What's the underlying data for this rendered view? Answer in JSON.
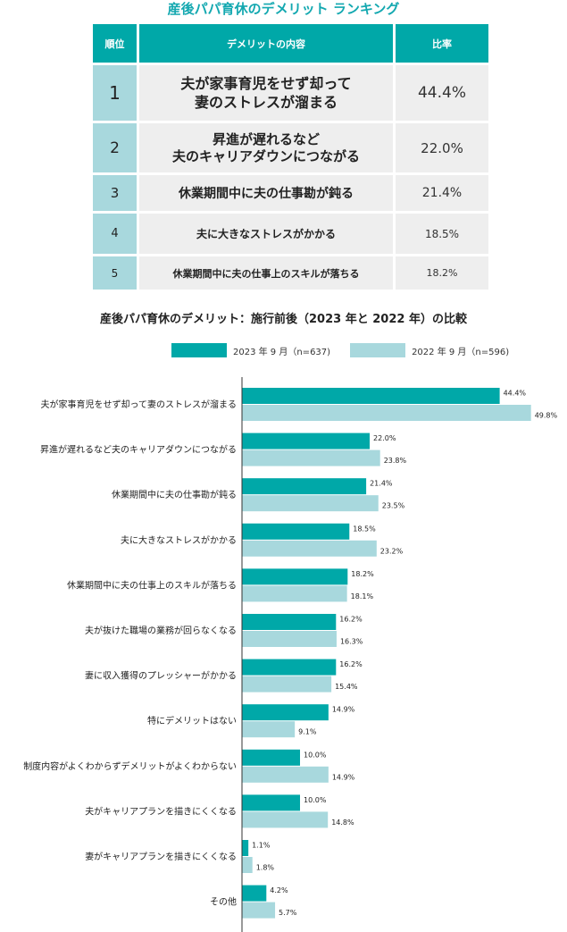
{
  "ranking": {
    "title": "産後パパ育休のデメリット ランキング",
    "headers": [
      "順位",
      "デメリットの内容",
      "比率"
    ],
    "rows": [
      {
        "rank": "1",
        "text": "夫が家事育児をせず却って\n妻のストレスが溜まる",
        "rate": "44.4%"
      },
      {
        "rank": "2",
        "text": "昇進が遅れるなど\n夫のキャリアダウンにつながる",
        "rate": "22.0%"
      },
      {
        "rank": "3",
        "text": "休業期間中に夫の仕事勘が鈍る",
        "rate": "21.4%"
      },
      {
        "rank": "4",
        "text": "夫に大きなストレスがかかる",
        "rate": "18.5%"
      },
      {
        "rank": "5",
        "text": "休業期間中に夫の仕事上のスキルが落ちる",
        "rate": "18.2%"
      }
    ]
  },
  "chart_data": {
    "type": "bar",
    "orientation": "horizontal",
    "title": "産後パパ育休のデメリット：施行前後（2023 年と 2022 年）の比較",
    "categories": [
      "夫が家事育児をせず却って妻のストレスが溜まる",
      "昇進が遅れるなど夫のキャリアダウンにつながる",
      "休業期間中に夫の仕事勘が鈍る",
      "夫に大きなストレスがかかる",
      "休業期間中に夫の仕事上のスキルが落ちる",
      "夫が抜けた職場の業務が回らなくなる",
      "妻に収入獲得のプレッシャーがかかる",
      "特にデメリットはない",
      "制度内容がよくわからずデメリットがよくわからない",
      "夫がキャリアプランを描きにくくなる",
      "妻がキャリアプランを描きにくくなる",
      "その他"
    ],
    "series": [
      {
        "name": "2023 年 9 月（n=637)",
        "color": "#00a8a8",
        "values": [
          44.4,
          22.0,
          21.4,
          18.5,
          18.2,
          16.2,
          16.2,
          14.9,
          10.0,
          10.0,
          1.1,
          4.2
        ],
        "labels": [
          "44.4%",
          "22.0%",
          "21.4%",
          "18.5%",
          "18.2%",
          "16.2%",
          "16.2%",
          "14.9%",
          "10.0%",
          "10.0%",
          "1.1%",
          "4.2%"
        ]
      },
      {
        "name": "2022 年 9 月（n=596)",
        "color": "#a8d8dd",
        "values": [
          49.8,
          23.8,
          23.5,
          23.2,
          18.1,
          16.3,
          15.4,
          9.1,
          14.9,
          14.8,
          1.8,
          5.7
        ],
        "labels": [
          "49.8%",
          "23.8%",
          "23.5%",
          "23.2%",
          "18.1%",
          "16.3%",
          "15.4%",
          "9.1%",
          "14.9%",
          "14.8%",
          "1.8%",
          "5.7%"
        ]
      }
    ],
    "xlim": [
      0,
      50
    ],
    "legend_position": "top"
  }
}
